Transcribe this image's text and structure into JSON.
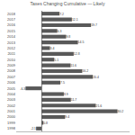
{
  "chart_data": {
    "type": "bar",
    "orientation": "horizontal",
    "title": "Taxes Changing Cumulative — Likely",
    "categories": [
      "2018",
      "2017",
      "2016",
      "2015",
      "2014",
      "2013",
      "2012",
      "2011",
      "2010",
      "2009",
      "2008",
      "2007",
      "2006",
      "2005",
      "2004",
      "2003",
      "2002",
      "2001",
      "2000",
      "1999",
      "1998"
    ],
    "values": [
      7.2,
      12.1,
      19.7,
      6.3,
      9.8,
      14.5,
      3.4,
      12.8,
      5.1,
      11.6,
      16.2,
      20.4,
      7.5,
      -6.3,
      8.9,
      11.7,
      21.6,
      30.2,
      9.4,
      0.8,
      -2.1
    ],
    "color": "#595959",
    "xlim": [
      -10,
      35
    ],
    "grid": false,
    "data_labels": true,
    "tick_labels": "y"
  }
}
